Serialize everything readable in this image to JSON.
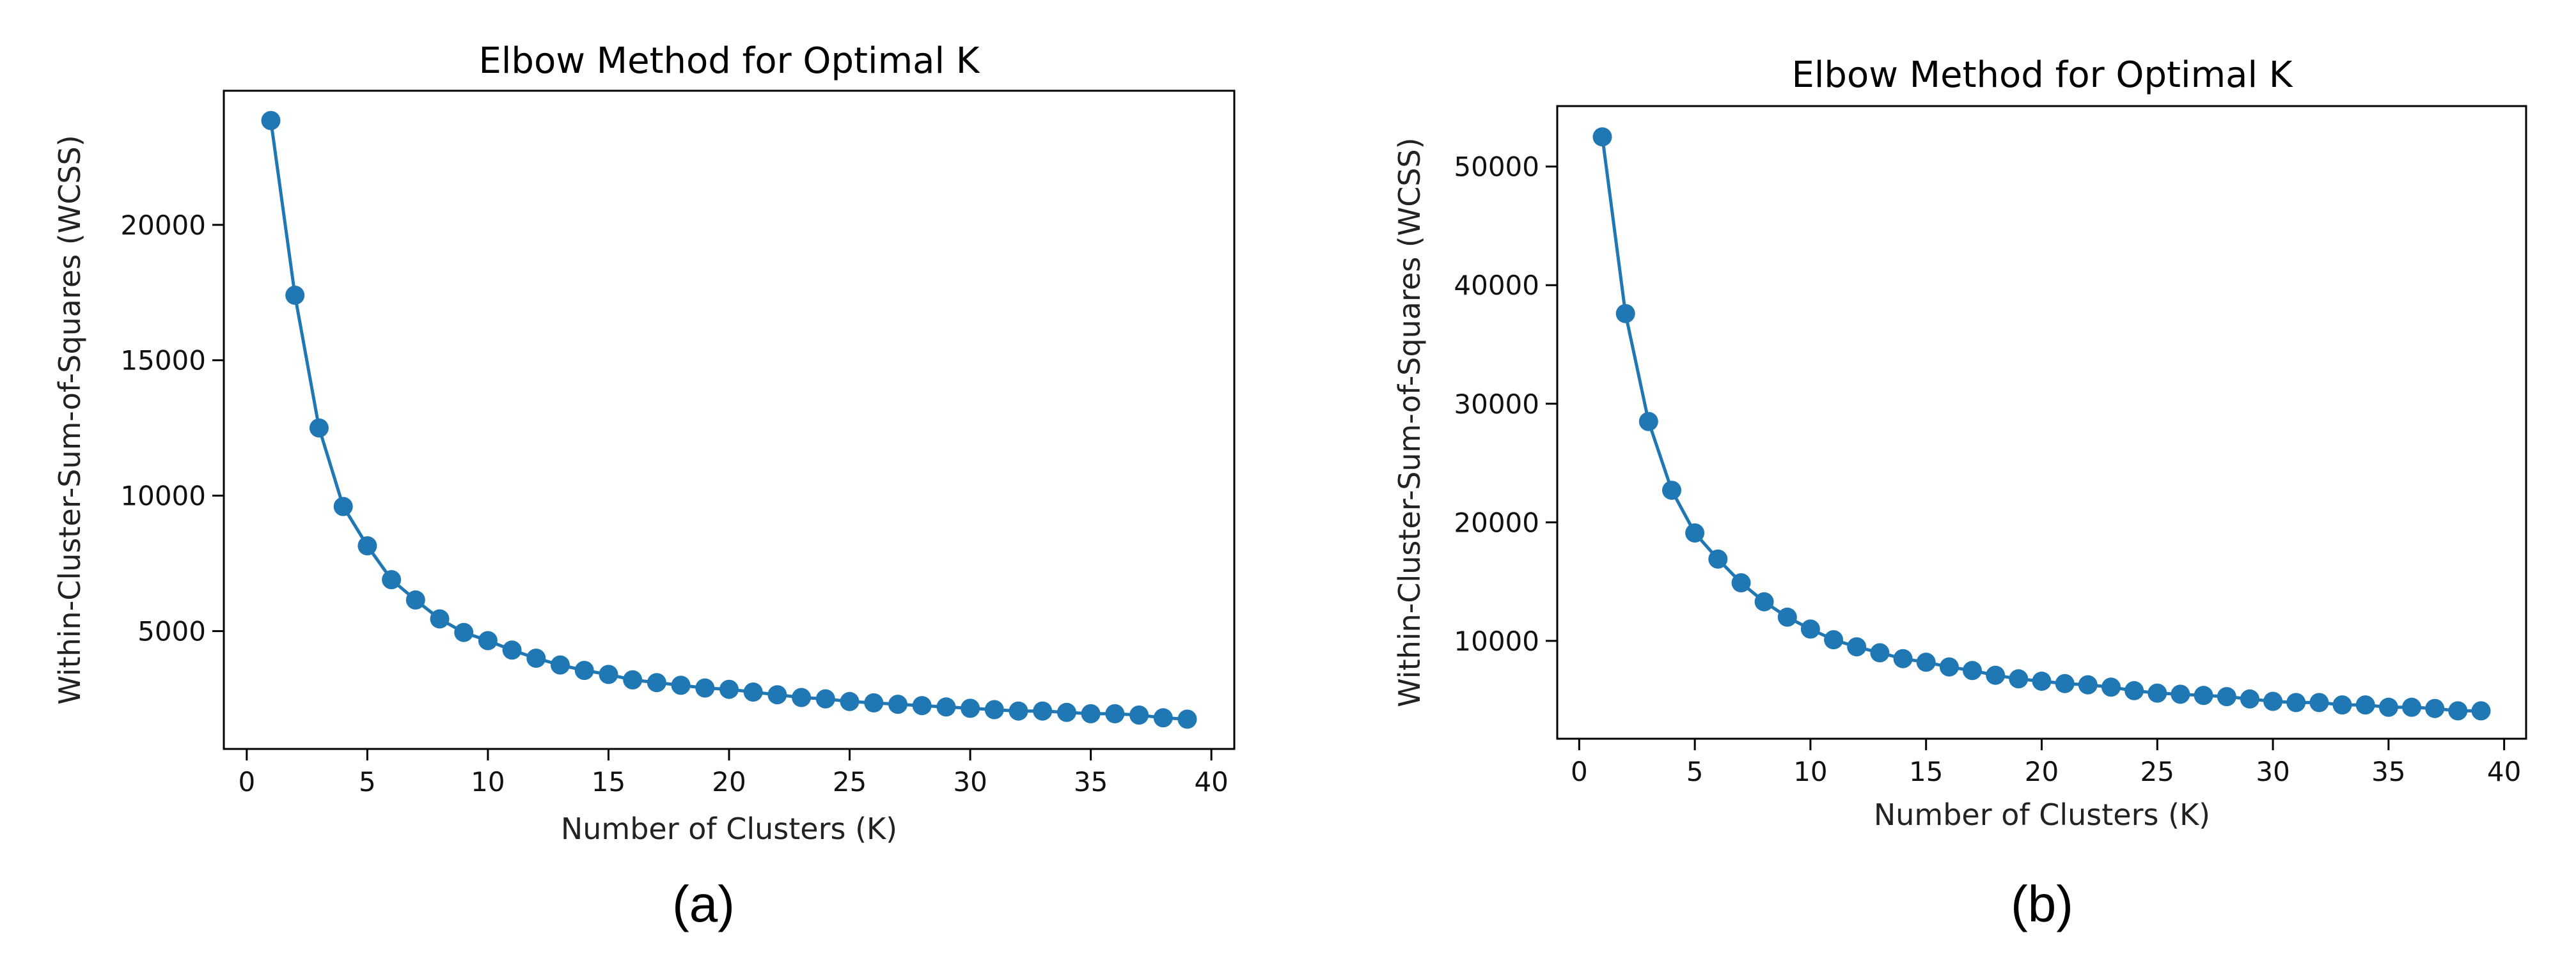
{
  "figure": {
    "captions": [
      "(a)",
      "(b)"
    ]
  },
  "colors": {
    "series": "#1f77b4",
    "axis": "#000000"
  },
  "chart_data": [
    {
      "type": "line",
      "marker": "circle",
      "title": "Elbow Method for Optimal K",
      "xlabel": "Number of Clusters (K)",
      "ylabel": "Within-Cluster-Sum-of-Squares (WCSS)",
      "xlim": [
        -0.95,
        40.95
      ],
      "ylim": [
        650,
        24950
      ],
      "xticks": [
        0,
        5,
        10,
        15,
        20,
        25,
        30,
        35,
        40
      ],
      "yticks": [
        5000,
        10000,
        15000,
        20000
      ],
      "x": [
        1,
        2,
        3,
        4,
        5,
        6,
        7,
        8,
        9,
        10,
        11,
        12,
        13,
        14,
        15,
        16,
        17,
        18,
        19,
        20,
        21,
        22,
        23,
        24,
        25,
        26,
        27,
        28,
        29,
        30,
        31,
        32,
        33,
        34,
        35,
        36,
        37,
        38,
        39
      ],
      "y": [
        23850,
        17400,
        12500,
        9600,
        8150,
        6900,
        6150,
        5450,
        4950,
        4650,
        4300,
        4000,
        3750,
        3550,
        3400,
        3200,
        3100,
        3000,
        2900,
        2850,
        2750,
        2650,
        2550,
        2500,
        2400,
        2350,
        2300,
        2250,
        2200,
        2150,
        2100,
        2050,
        2050,
        2000,
        1950,
        1950,
        1900,
        1800,
        1750
      ]
    },
    {
      "type": "line",
      "marker": "circle",
      "title": "Elbow Method for Optimal K",
      "xlabel": "Number of Clusters (K)",
      "ylabel": "Within-Cluster-Sum-of-Squares (WCSS)",
      "xlim": [
        -0.95,
        40.95
      ],
      "ylim": [
        1750,
        55100
      ],
      "xticks": [
        0,
        5,
        10,
        15,
        20,
        25,
        30,
        35,
        40
      ],
      "yticks": [
        10000,
        20000,
        30000,
        40000,
        50000
      ],
      "x": [
        1,
        2,
        3,
        4,
        5,
        6,
        7,
        8,
        9,
        10,
        11,
        12,
        13,
        14,
        15,
        16,
        17,
        18,
        19,
        20,
        21,
        22,
        23,
        24,
        25,
        26,
        27,
        28,
        29,
        30,
        31,
        32,
        33,
        34,
        35,
        36,
        37,
        38,
        39
      ],
      "y": [
        52500,
        37600,
        28500,
        22700,
        19100,
        16900,
        14900,
        13300,
        12000,
        11000,
        10100,
        9500,
        9000,
        8500,
        8200,
        7800,
        7500,
        7100,
        6800,
        6600,
        6400,
        6300,
        6100,
        5800,
        5600,
        5500,
        5400,
        5300,
        5100,
        4900,
        4800,
        4800,
        4600,
        4600,
        4400,
        4400,
        4300,
        4100,
        4100
      ]
    }
  ]
}
